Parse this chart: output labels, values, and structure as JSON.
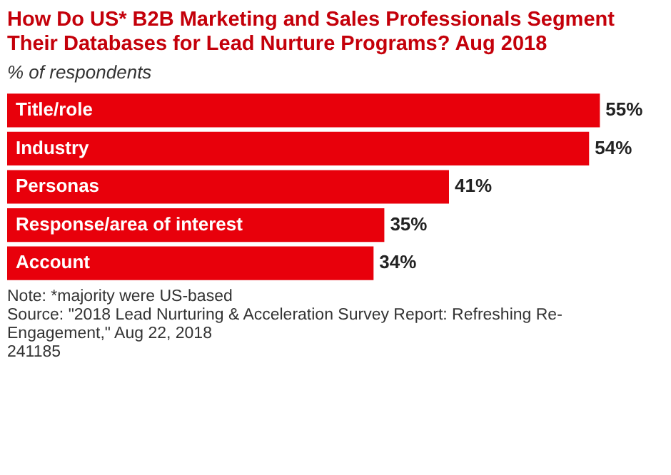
{
  "chart_data": {
    "type": "bar",
    "orientation": "horizontal",
    "title": "How Do US* B2B Marketing and Sales Professionals Segment Their Databases for Lead Nurture Programs? Aug 2018",
    "subtitle": "% of respondents",
    "categories": [
      "Title/role",
      "Industry",
      "Personas",
      "Response/area of interest",
      "Account"
    ],
    "values": [
      55,
      54,
      41,
      35,
      34
    ],
    "value_labels": [
      "55%",
      "54%",
      "41%",
      "35%",
      "34%"
    ],
    "color": "#e8000b",
    "annotations": [
      "Note: *majority were US-based",
      "Source: \"2018 Lead Nurturing & Acceleration Survey Report: Refreshing Re-Engagement,\" Aug 22, 2018",
      "241185"
    ]
  }
}
